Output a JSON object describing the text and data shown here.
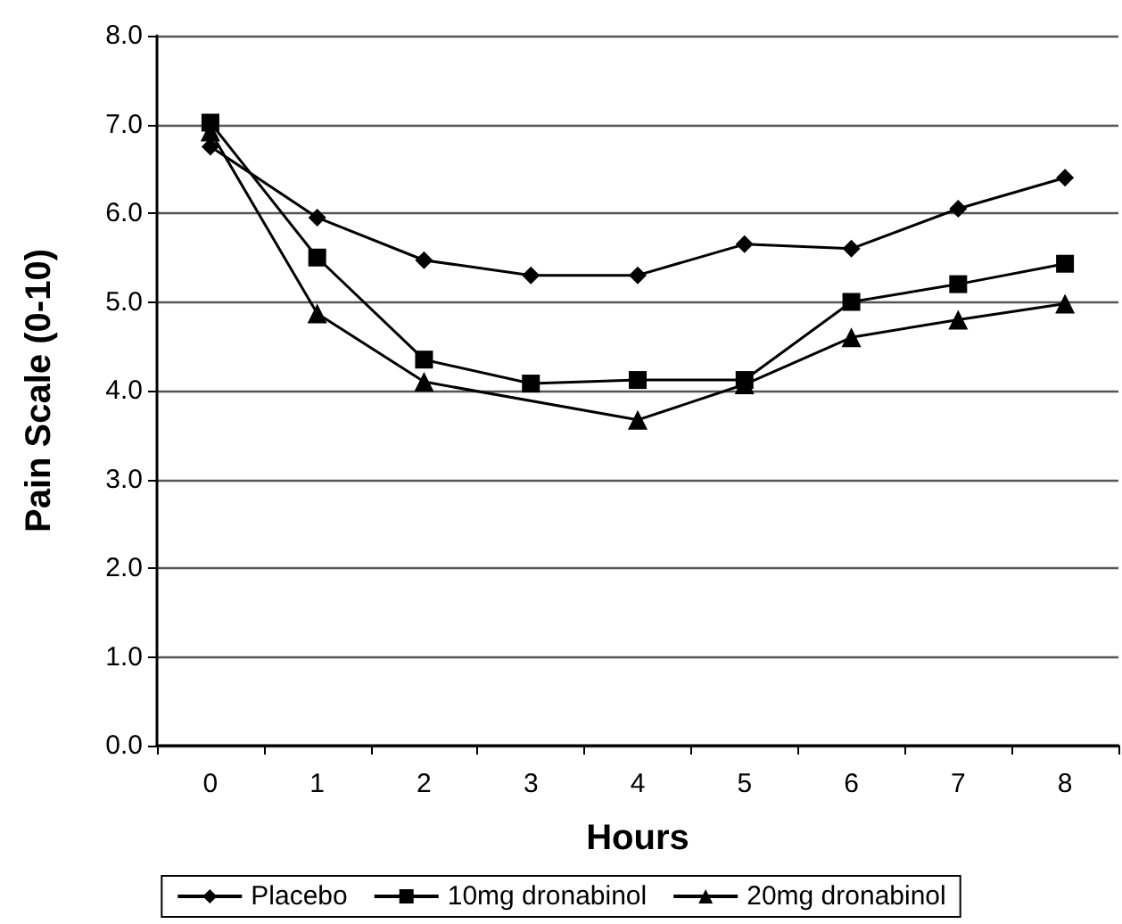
{
  "chart_data": {
    "type": "line",
    "xlabel": "Hours",
    "ylabel": "Pain Scale (0-10)",
    "categories": [
      "0",
      "1",
      "2",
      "3",
      "4",
      "5",
      "6",
      "7",
      "8"
    ],
    "ylim": [
      0,
      8
    ],
    "yticks": [
      {
        "value": 0,
        "label": "0.0"
      },
      {
        "value": 1,
        "label": "1.0"
      },
      {
        "value": 2,
        "label": "2.0"
      },
      {
        "value": 3,
        "label": "3.0"
      },
      {
        "value": 4,
        "label": "4.0"
      },
      {
        "value": 5,
        "label": "5.0"
      },
      {
        "value": 6,
        "label": "6.0"
      },
      {
        "value": 7,
        "label": "7.0"
      },
      {
        "value": 8,
        "label": "8.0"
      }
    ],
    "grid": "y",
    "legend": "bottom",
    "line_style": "solid",
    "series": [
      {
        "name": "Placebo",
        "color": "#000000",
        "marker": "diamond",
        "values": [
          6.75,
          5.95,
          5.47,
          5.3,
          5.3,
          5.65,
          5.6,
          6.05,
          6.4
        ]
      },
      {
        "name": "10mg dronabinol",
        "color": "#000000",
        "marker": "square",
        "values": [
          7.02,
          5.5,
          4.35,
          4.08,
          4.12,
          4.12,
          5.0,
          5.2,
          5.43
        ]
      },
      {
        "name": "20mg dronabinol",
        "color": "#000000",
        "marker": "triangle",
        "values": [
          6.92,
          4.87,
          4.1,
          null,
          3.67,
          4.07,
          4.6,
          4.8,
          4.98
        ]
      }
    ]
  }
}
